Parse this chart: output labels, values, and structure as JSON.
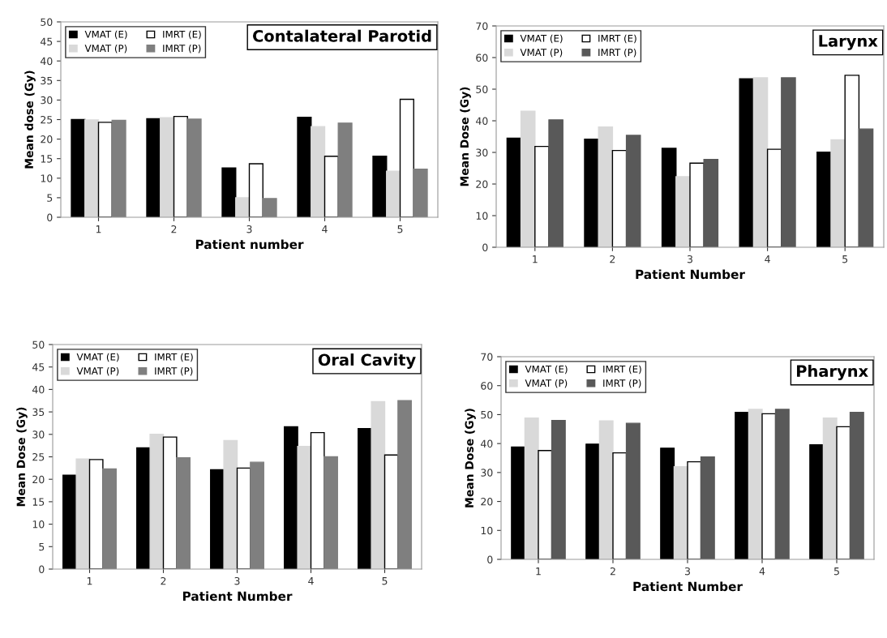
{
  "chart_data": [
    {
      "type": "bar",
      "title": "Contalateral Parotid",
      "xlabel": "Patient number",
      "ylabel": "Mean dose (Gy)",
      "categories": [
        "1",
        "2",
        "3",
        "4",
        "5"
      ],
      "ylim": [
        0,
        50
      ],
      "yticks": [
        0,
        5,
        10,
        15,
        20,
        25,
        30,
        35,
        40,
        45,
        50
      ],
      "grid": false,
      "legend": "top left",
      "series": [
        {
          "name": "VMAT (E)",
          "color": "#000000",
          "values": [
            25,
            25.2,
            12.6,
            25.6,
            15.6
          ]
        },
        {
          "name": "VMAT (P)",
          "color": "#d9d9d9",
          "values": [
            24.9,
            25.5,
            5,
            23.2,
            11.8
          ]
        },
        {
          "name": "IMRT (E)",
          "color": "#ffffff",
          "values": [
            24.3,
            25.8,
            13.7,
            15.6,
            30.2
          ]
        },
        {
          "name": "IMRT (P)",
          "color": "#7f7f7f",
          "values": [
            24.8,
            25.1,
            4.8,
            24.1,
            12.3
          ]
        }
      ]
    },
    {
      "type": "bar",
      "title": "Larynx",
      "xlabel": "Patient Number",
      "ylabel": "Mean Dose (Gy)",
      "categories": [
        "1",
        "2",
        "3",
        "4",
        "5"
      ],
      "ylim": [
        0,
        70
      ],
      "yticks": [
        0,
        10,
        20,
        30,
        40,
        50,
        60,
        70
      ],
      "grid": false,
      "legend": "top left",
      "series": [
        {
          "name": "VMAT (E)",
          "color": "#000000",
          "values": [
            34.5,
            34.2,
            31.3,
            53.3,
            30.1
          ]
        },
        {
          "name": "VMAT (P)",
          "color": "#d9d9d9",
          "values": [
            43,
            38,
            22.3,
            53.6,
            34
          ]
        },
        {
          "name": "IMRT (E)",
          "color": "#ffffff",
          "values": [
            31.9,
            30.6,
            26.6,
            31,
            54.4
          ]
        },
        {
          "name": "IMRT (P)",
          "color": "#595959",
          "values": [
            40.3,
            35.4,
            27.8,
            53.6,
            37.4
          ]
        }
      ]
    },
    {
      "type": "bar",
      "title": "Oral Cavity",
      "xlabel": "Patient Number",
      "ylabel": "Mean Dose (Gy)",
      "categories": [
        "1",
        "2",
        "3",
        "4",
        "5"
      ],
      "ylim": [
        0,
        50
      ],
      "yticks": [
        0,
        5,
        10,
        15,
        20,
        25,
        30,
        35,
        40,
        45,
        50
      ],
      "grid": false,
      "legend": "top left",
      "series": [
        {
          "name": "VMAT (E)",
          "color": "#000000",
          "values": [
            20.9,
            27,
            22.1,
            31.7,
            31.3
          ]
        },
        {
          "name": "VMAT (P)",
          "color": "#d9d9d9",
          "values": [
            24.5,
            30,
            28.6,
            27.3,
            37.3
          ]
        },
        {
          "name": "IMRT (E)",
          "color": "#ffffff",
          "values": [
            24.4,
            29.4,
            22.5,
            30.4,
            25.4
          ]
        },
        {
          "name": "IMRT (P)",
          "color": "#7f7f7f",
          "values": [
            22.3,
            24.8,
            23.8,
            25,
            37.5
          ]
        }
      ]
    },
    {
      "type": "bar",
      "title": "Pharynx",
      "xlabel": "Patient Number",
      "ylabel": "Mean Dose (Gy)",
      "categories": [
        "1",
        "2",
        "3",
        "4",
        "5"
      ],
      "ylim": [
        0,
        70
      ],
      "yticks": [
        0,
        10,
        20,
        30,
        40,
        50,
        60,
        70
      ],
      "grid": false,
      "legend": "top left",
      "series": [
        {
          "name": "VMAT (E)",
          "color": "#000000",
          "values": [
            38.8,
            39.8,
            38.4,
            50.8,
            39.6
          ]
        },
        {
          "name": "VMAT (P)",
          "color": "#d9d9d9",
          "values": [
            48.8,
            47.8,
            32,
            51.8,
            48.8
          ]
        },
        {
          "name": "IMRT (E)",
          "color": "#ffffff",
          "values": [
            37.6,
            36.8,
            33.7,
            50.3,
            45.8
          ]
        },
        {
          "name": "IMRT (P)",
          "color": "#595959",
          "values": [
            48,
            47,
            35.4,
            51.8,
            50.8
          ]
        }
      ]
    }
  ]
}
